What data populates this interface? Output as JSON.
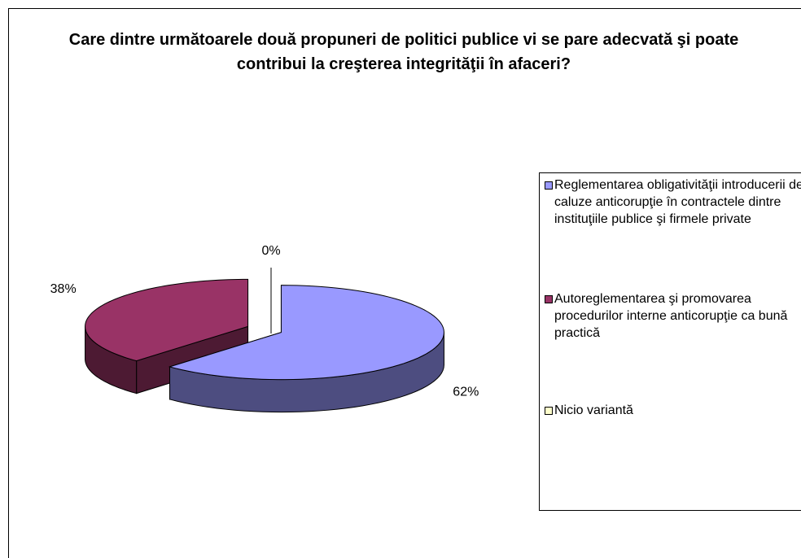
{
  "chart_data": {
    "type": "pie3d",
    "title": "Care dintre următoarele două propuneri de politici publice vi se pare adecvată şi poate contribui la creşterea integrităţii în afaceri?",
    "categories": [
      "Reglementarea obligativităţii introducerii de caluze anticorupţie în contractele dintre instituţiile publice şi firmele private",
      "Autoreglementarea şi promovarea procedurilor interne anticorupţie ca bună practică",
      "Nicio variantă"
    ],
    "values": [
      62,
      38,
      0
    ],
    "value_labels": [
      "62%",
      "38%",
      "0%"
    ],
    "colors": [
      "#9999ff",
      "#993366",
      "#ffffcc"
    ],
    "legend": "right"
  }
}
